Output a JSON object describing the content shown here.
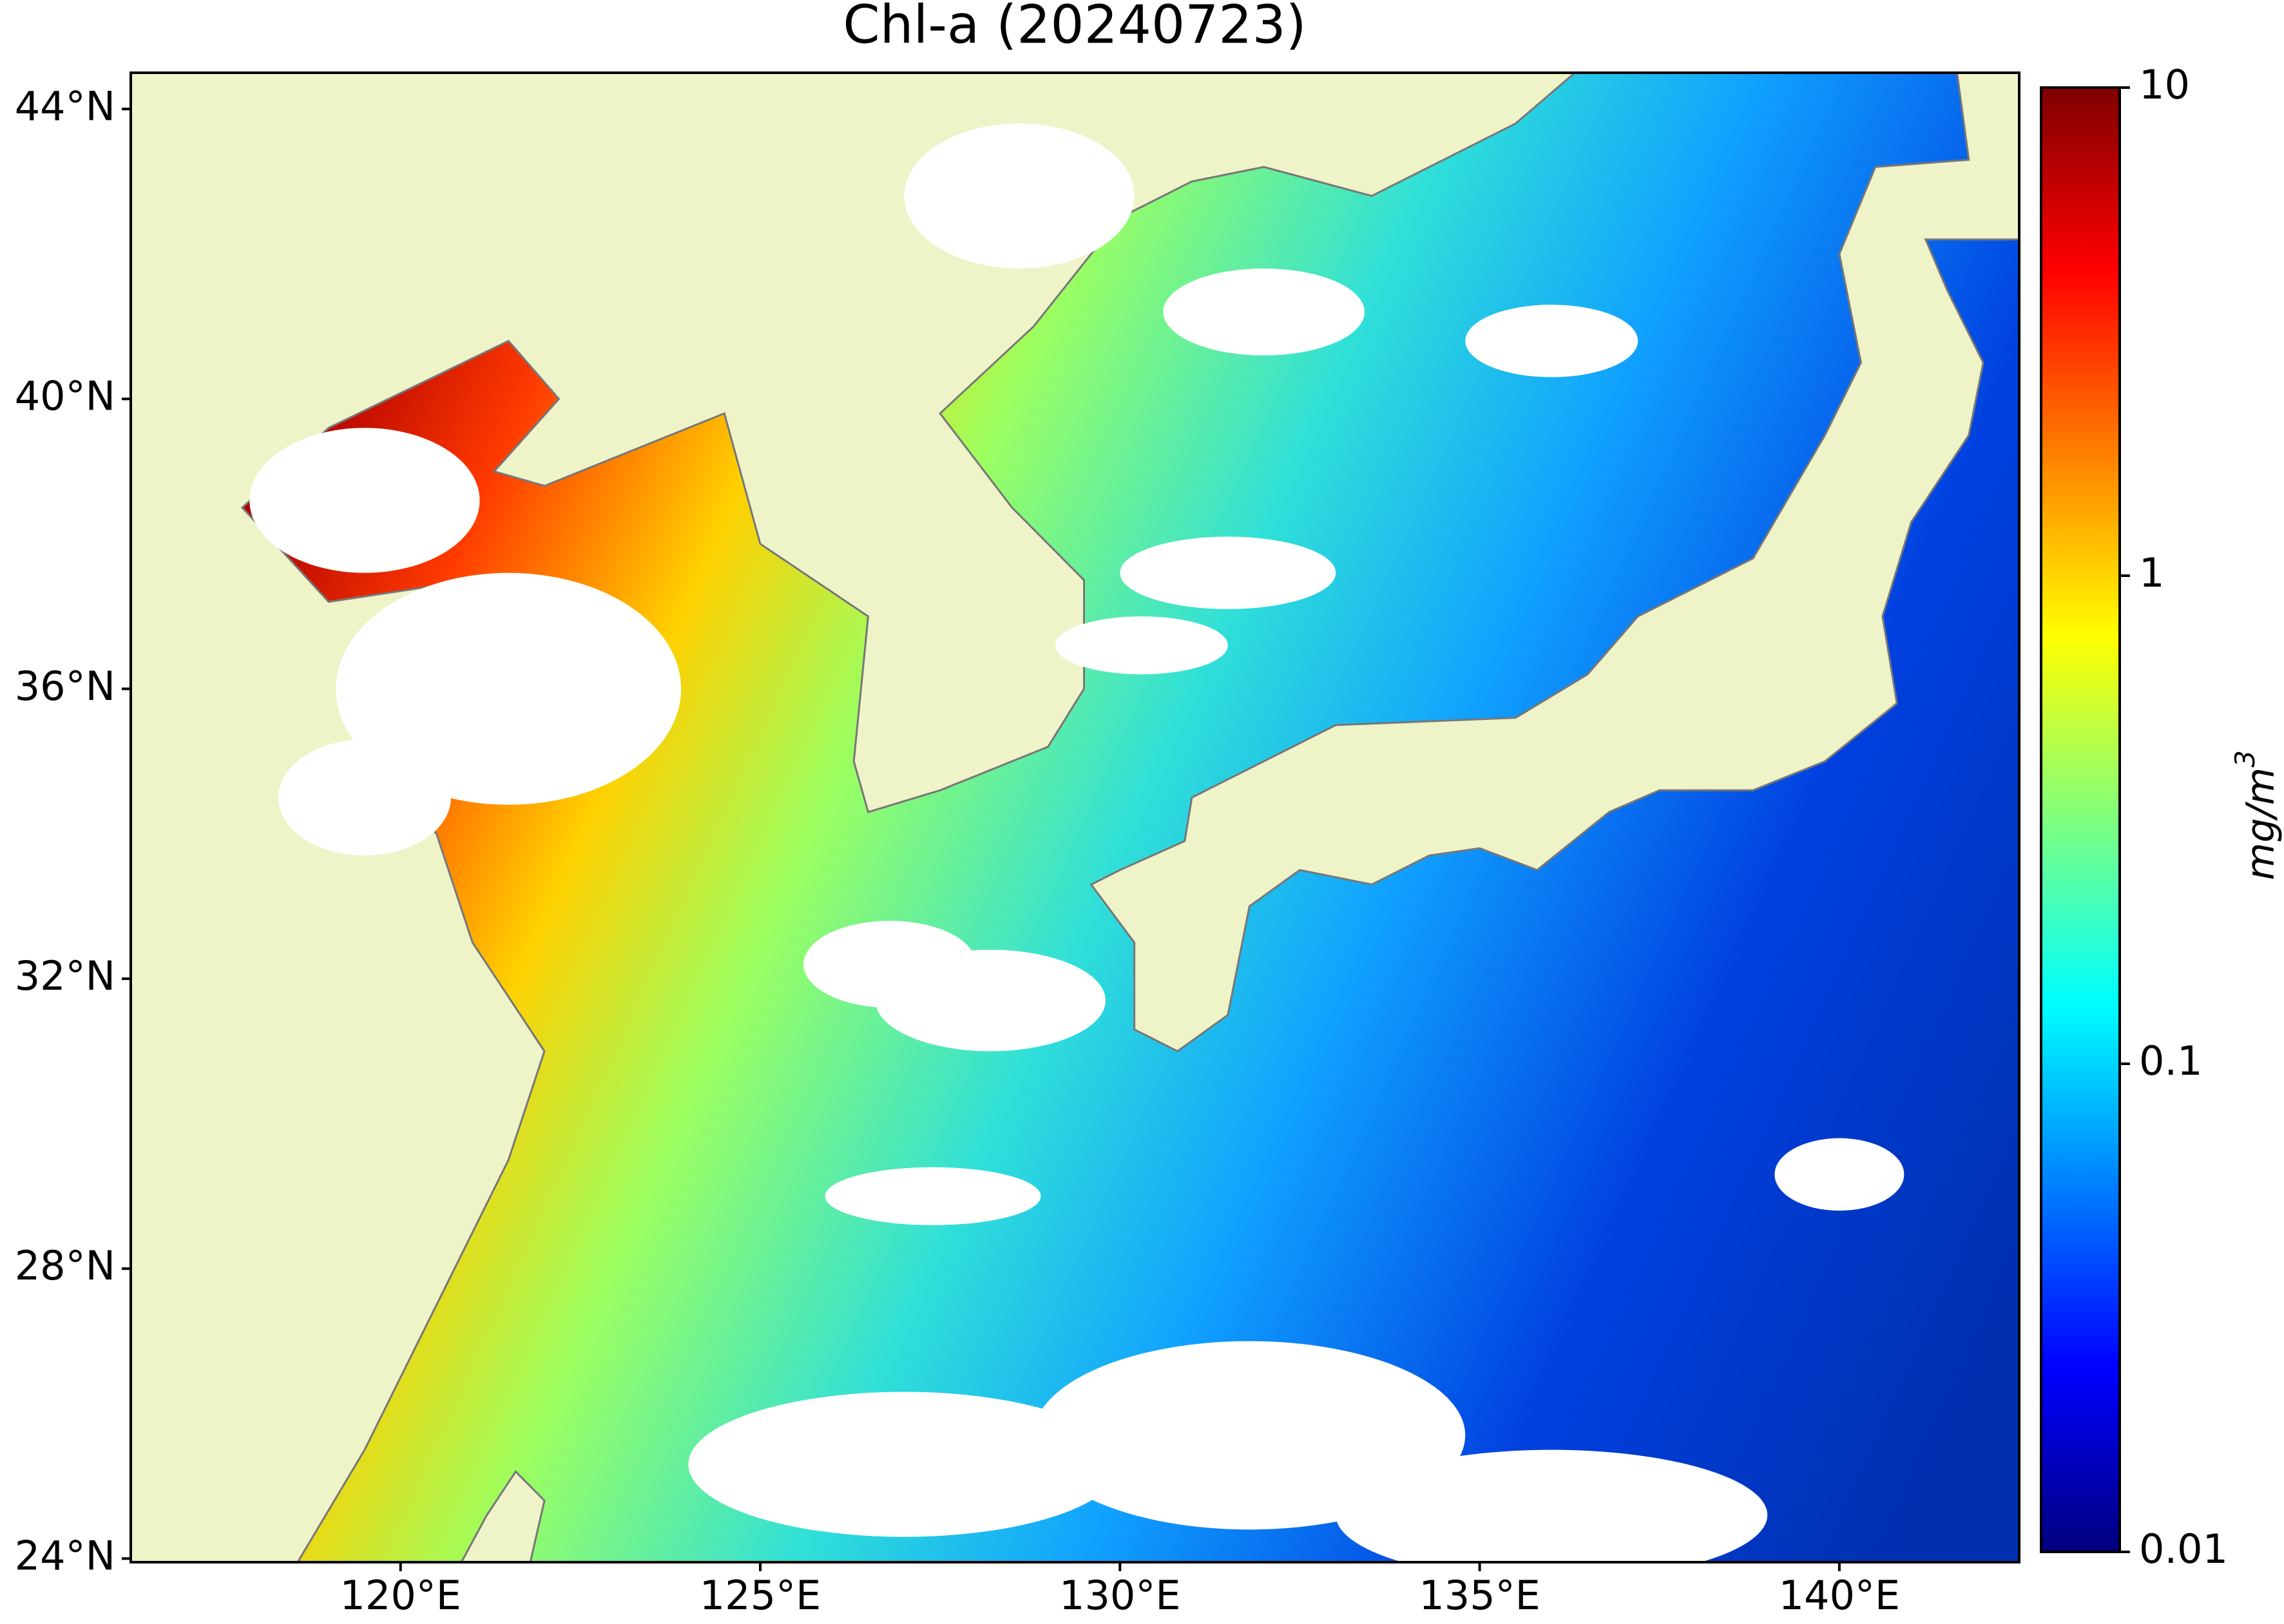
{
  "chart_data": {
    "type": "map",
    "title": "Chl-a (20240723)",
    "xlim": [
      116.25,
      142.5
    ],
    "ylim": [
      23.95,
      44.5
    ],
    "xticks": [
      {
        "value": 120,
        "label": "120°E"
      },
      {
        "value": 125,
        "label": "125°E"
      },
      {
        "value": 130,
        "label": "130°E"
      },
      {
        "value": 135,
        "label": "135°E"
      },
      {
        "value": 140,
        "label": "140°E"
      }
    ],
    "yticks": [
      {
        "value": 24,
        "label": "24°N"
      },
      {
        "value": 28,
        "label": "28°N"
      },
      {
        "value": 32,
        "label": "32°N"
      },
      {
        "value": 36,
        "label": "36°N"
      },
      {
        "value": 40,
        "label": "40°N"
      },
      {
        "value": 44,
        "label": "44°N"
      }
    ],
    "colorbar": {
      "label": "mg/m",
      "label_superscript": "3",
      "scale": "log",
      "lim": [
        0.01,
        10
      ],
      "ticks": [
        0.01,
        0.1,
        1,
        10
      ],
      "colormap": [
        "#00007f",
        "#0000ff",
        "#007fff",
        "#00ffff",
        "#7fff7f",
        "#ffff00",
        "#ff7f00",
        "#ff0000",
        "#7f0000"
      ]
    }
  }
}
